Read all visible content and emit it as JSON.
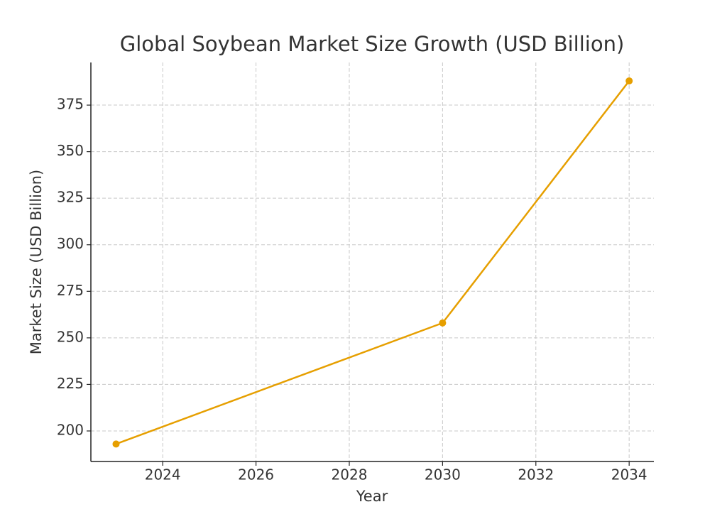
{
  "chart_data": {
    "type": "line",
    "title": "Global Soybean Market Size Growth (USD Billion)",
    "x_label": "Year",
    "y_label": "Market Size (USD Billion)",
    "x": [
      2023,
      2030,
      2034
    ],
    "series": [
      {
        "name": "Market Size",
        "color": "#e69f00",
        "values": [
          193,
          258,
          388
        ]
      }
    ],
    "xlim": [
      2022.46,
      2034.53
    ],
    "xticks": [
      2024,
      2026,
      2028,
      2030,
      2032,
      2034
    ],
    "ylim": [
      183.6,
      397.9
    ],
    "yticks": [
      200,
      225,
      250,
      275,
      300,
      325,
      350,
      375
    ],
    "grid": true
  }
}
